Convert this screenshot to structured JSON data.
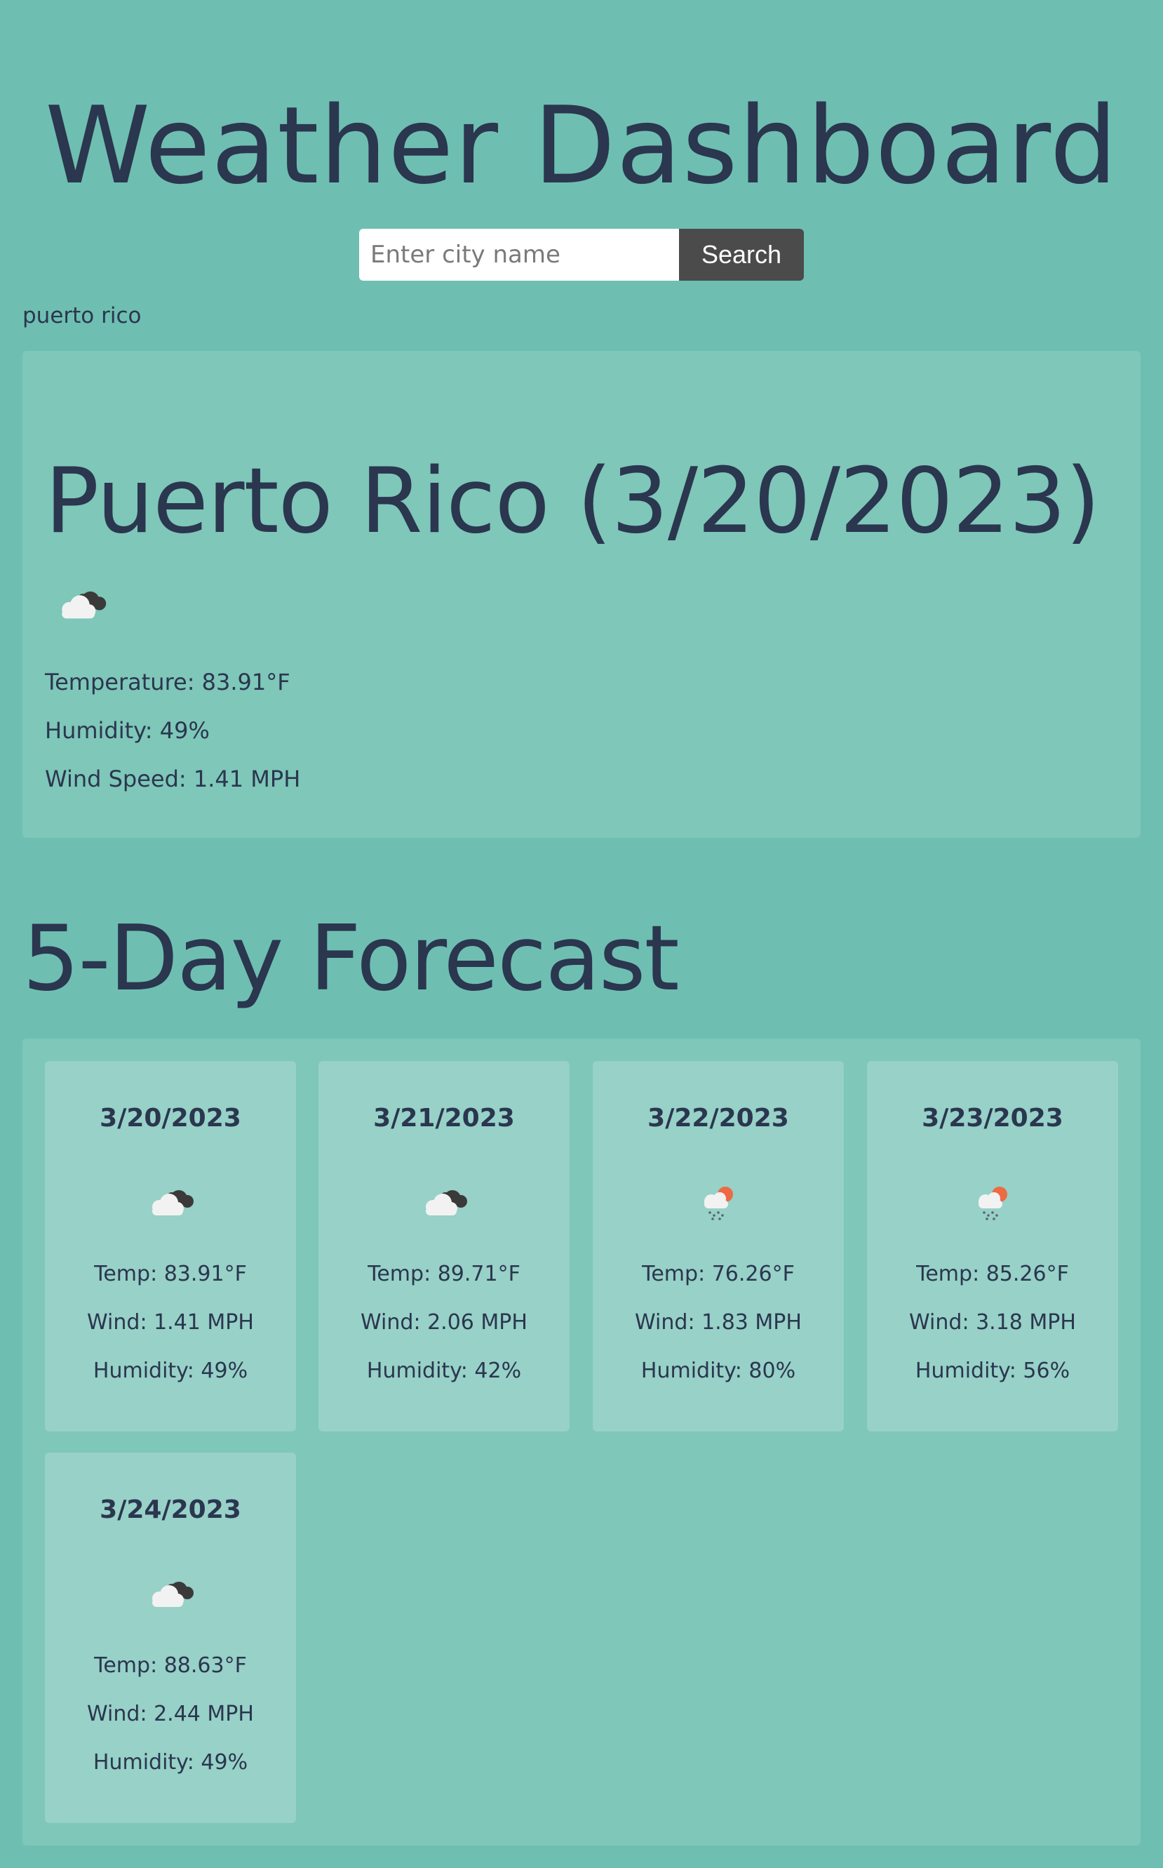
{
  "header": {
    "title": "Weather Dashboard"
  },
  "search": {
    "placeholder": "Enter city name",
    "value": "",
    "button_label": "Search"
  },
  "history": [
    {
      "label": "puerto rico"
    }
  ],
  "current": {
    "title": "Puerto Rico (3/20/2023)",
    "icon": "clouds-icon",
    "temperature": "Temperature: 83.91°F",
    "humidity": "Humidity: 49%",
    "wind": "Wind Speed: 1.41 MPH"
  },
  "forecast": {
    "heading": "5-Day Forecast",
    "days": [
      {
        "date": "3/20/2023",
        "icon": "clouds-icon",
        "temp": "Temp: 83.91°F",
        "wind": "Wind: 1.41 MPH",
        "humidity": "Humidity: 49%"
      },
      {
        "date": "3/21/2023",
        "icon": "clouds-icon",
        "temp": "Temp: 89.71°F",
        "wind": "Wind: 2.06 MPH",
        "humidity": "Humidity: 42%"
      },
      {
        "date": "3/22/2023",
        "icon": "rain-sun-icon",
        "temp": "Temp: 76.26°F",
        "wind": "Wind: 1.83 MPH",
        "humidity": "Humidity: 80%"
      },
      {
        "date": "3/23/2023",
        "icon": "rain-sun-icon",
        "temp": "Temp: 85.26°F",
        "wind": "Wind: 3.18 MPH",
        "humidity": "Humidity: 56%"
      },
      {
        "date": "3/24/2023",
        "icon": "clouds-icon",
        "temp": "Temp: 88.63°F",
        "wind": "Wind: 2.44 MPH",
        "humidity": "Humidity: 49%"
      }
    ]
  },
  "colors": {
    "background": "#6ebfb1",
    "panel": "#7ec7b9",
    "card": "#97d1c7",
    "text": "#2b364f",
    "button": "#4b4b4b"
  }
}
